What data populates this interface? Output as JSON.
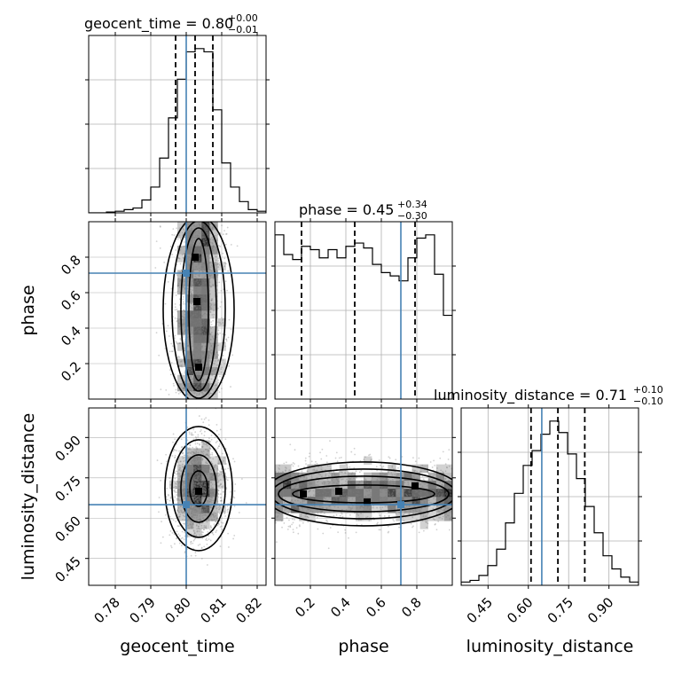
{
  "chart_data": {
    "type": "corner",
    "params": [
      "geocent_time",
      "phase",
      "luminosity_distance"
    ],
    "axis_labels": [
      "geocent_time",
      "phase",
      "luminosity_distance"
    ],
    "ranges": [
      [
        0.7725,
        0.8225
      ],
      [
        0.0,
        1.0
      ],
      [
        0.35,
        1.01
      ]
    ],
    "truths": [
      0.8,
      0.71,
      0.65
    ],
    "grid": true,
    "colors": {
      "hist": "#000000",
      "truth": "#4682b4",
      "grid": "#b0b0b0"
    },
    "ticks": {
      "geocent_time": [
        0.78,
        0.79,
        0.8,
        0.81,
        0.82
      ],
      "phase": [
        0.2,
        0.4,
        0.6,
        0.8
      ],
      "luminosity_distance": [
        0.45,
        0.6,
        0.75,
        0.9
      ]
    },
    "tick_labels": {
      "geocent_time": [
        "0.78",
        "0.79",
        "0.80",
        "0.81",
        "0.82"
      ],
      "phase": [
        "0.2",
        "0.4",
        "0.6",
        "0.8"
      ],
      "luminosity_distance": [
        "0.45",
        "0.60",
        "0.75",
        "0.90"
      ]
    },
    "titles": [
      {
        "param": "geocent_time",
        "text": "geocent_time = 0.80",
        "plus": "+0.00",
        "minus": "−0.01"
      },
      {
        "param": "phase",
        "text": "phase = 0.45",
        "plus": "+0.34",
        "minus": "−0.30"
      },
      {
        "param": "luminosity_distance",
        "text": "luminosity_distance = 0.71",
        "plus": "+0.10",
        "minus": "−0.10"
      }
    ],
    "quantiles": {
      "geocent_time": [
        0.797,
        0.8025,
        0.8075
      ],
      "phase": [
        0.15,
        0.45,
        0.79
      ],
      "luminosity_distance": [
        0.61,
        0.71,
        0.81
      ]
    },
    "histograms": {
      "geocent_time": {
        "edges": [
          0.7725,
          0.775,
          0.7775,
          0.78,
          0.7825,
          0.785,
          0.7875,
          0.79,
          0.7925,
          0.795,
          0.7975,
          0.8,
          0.8025,
          0.805,
          0.8075,
          0.81,
          0.8125,
          0.815,
          0.8175,
          0.82,
          0.8225
        ],
        "counts": [
          0,
          0,
          0.5,
          1,
          2,
          3,
          8,
          16,
          34,
          59,
          83,
          100,
          102,
          100,
          64,
          31,
          16,
          7,
          2,
          1
        ]
      },
      "phase": {
        "edges": [
          0.0,
          0.05,
          0.1,
          0.15,
          0.2,
          0.25,
          0.3,
          0.35,
          0.4,
          0.45,
          0.5,
          0.55,
          0.6,
          0.65,
          0.7,
          0.75,
          0.8,
          0.85,
          0.9,
          0.95,
          1.0
        ],
        "counts": [
          100,
          88,
          85,
          93,
          91,
          86,
          91,
          86,
          93,
          95,
          92,
          82,
          77,
          75,
          72,
          86,
          98,
          100,
          76,
          51
        ]
      },
      "luminosity_distance": {
        "edges": [
          0.35,
          0.383,
          0.416,
          0.449,
          0.482,
          0.515,
          0.548,
          0.581,
          0.614,
          0.647,
          0.68,
          0.713,
          0.746,
          0.779,
          0.812,
          0.845,
          0.878,
          0.911,
          0.944,
          0.977,
          1.01
        ],
        "counts": [
          2,
          3,
          6,
          12,
          22,
          38,
          56,
          73,
          82,
          92,
          100,
          93,
          80,
          65,
          48,
          32,
          18,
          10,
          5,
          2
        ]
      }
    },
    "scatter_pairs": [
      {
        "x": "geocent_time",
        "y": "phase",
        "x_mean": 0.8035,
        "x_sd": 0.0035,
        "y_min": 0.02,
        "y_max": 0.99,
        "max_points": [
          [
            0.8025,
            0.8
          ],
          [
            0.8035,
            0.18
          ],
          [
            0.803,
            0.55
          ]
        ]
      },
      {
        "x": "geocent_time",
        "y": "luminosity_distance",
        "x_mean": 0.8035,
        "x_sd": 0.0038,
        "y_mean": 0.71,
        "y_sd": 0.09,
        "max_points": [
          [
            0.8035,
            0.7
          ]
        ]
      },
      {
        "x": "phase",
        "y": "luminosity_distance",
        "y_mean": 0.69,
        "y_sd": 0.06,
        "x_min": 0.0,
        "x_max": 1.0,
        "max_points": [
          [
            0.16,
            0.69
          ],
          [
            0.36,
            0.7
          ],
          [
            0.52,
            0.66
          ],
          [
            0.79,
            0.72
          ]
        ]
      }
    ]
  }
}
